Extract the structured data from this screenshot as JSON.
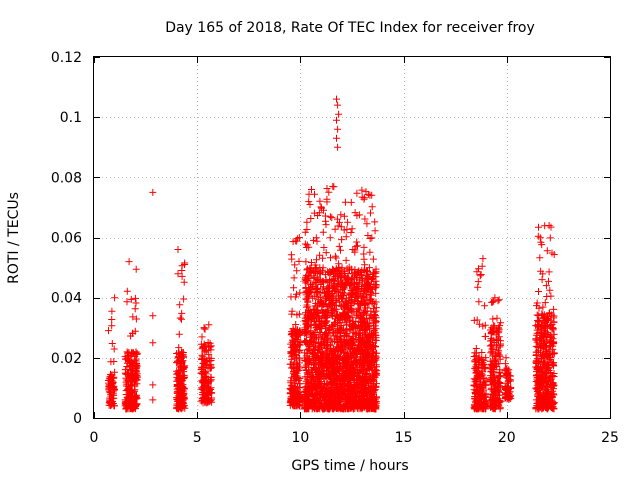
{
  "chart_data": {
    "type": "scatter",
    "title": "Day 165 of 2018, Rate Of TEC Index for receiver froy",
    "xlabel": "GPS time / hours",
    "ylabel": "ROTI / TECUs",
    "xlim": [
      0,
      25
    ],
    "ylim": [
      0,
      0.12
    ],
    "xticks": [
      0,
      5,
      10,
      15,
      20,
      25
    ],
    "xtick_labels": [
      "0",
      "5",
      "10",
      "15",
      "20",
      "25"
    ],
    "yticks": [
      0,
      0.02,
      0.04,
      0.06,
      0.08,
      0.1,
      0.12
    ],
    "ytick_labels": [
      "0",
      "0.02",
      "0.04",
      "0.06",
      "0.08",
      "0.1",
      "0.12"
    ],
    "grid": true,
    "marker": "+",
    "color": "#ff0000",
    "clusters": [
      {
        "x": [
          0.7,
          1.0
        ],
        "y_dense": [
          0.004,
          0.014
        ],
        "y_max": 0.04,
        "n": 80
      },
      {
        "x": [
          1.5,
          2.1
        ],
        "y_dense": [
          0.003,
          0.022
        ],
        "y_max": 0.052,
        "n": 220
      },
      {
        "x": [
          4.0,
          4.4
        ],
        "y_dense": [
          0.003,
          0.022
        ],
        "y_max": 0.056,
        "n": 200
      },
      {
        "x": [
          5.2,
          5.7
        ],
        "y_dense": [
          0.005,
          0.025
        ],
        "y_max": 0.031,
        "n": 150
      },
      {
        "x": [
          9.5,
          10.0
        ],
        "y_dense": [
          0.004,
          0.03
        ],
        "y_max": 0.06,
        "n": 230
      },
      {
        "x": [
          10.2,
          13.7
        ],
        "y_dense": [
          0.003,
          0.05
        ],
        "y_max": 0.077,
        "n": 2300
      },
      {
        "x": [
          18.4,
          19.0
        ],
        "y_dense": [
          0.003,
          0.022
        ],
        "y_max": 0.053,
        "n": 200
      },
      {
        "x": [
          19.2,
          19.7
        ],
        "y_dense": [
          0.003,
          0.03
        ],
        "y_max": 0.04,
        "n": 200
      },
      {
        "x": [
          19.9,
          20.2
        ],
        "y_dense": [
          0.006,
          0.017
        ],
        "y_max": 0.02,
        "n": 70
      },
      {
        "x": [
          21.4,
          22.3
        ],
        "y_dense": [
          0.003,
          0.035
        ],
        "y_max": 0.064,
        "n": 450
      }
    ],
    "outliers": [
      {
        "x": 2.85,
        "y": 0.075
      },
      {
        "x": 2.85,
        "y": 0.034
      },
      {
        "x": 2.85,
        "y": 0.025
      },
      {
        "x": 2.85,
        "y": 0.011
      },
      {
        "x": 2.85,
        "y": 0.006
      },
      {
        "x": 11.75,
        "y": 0.106
      },
      {
        "x": 11.8,
        "y": 0.104
      },
      {
        "x": 11.85,
        "y": 0.101
      },
      {
        "x": 11.75,
        "y": 0.099
      },
      {
        "x": 11.8,
        "y": 0.096
      },
      {
        "x": 11.75,
        "y": 0.093
      },
      {
        "x": 11.8,
        "y": 0.09
      }
    ]
  }
}
